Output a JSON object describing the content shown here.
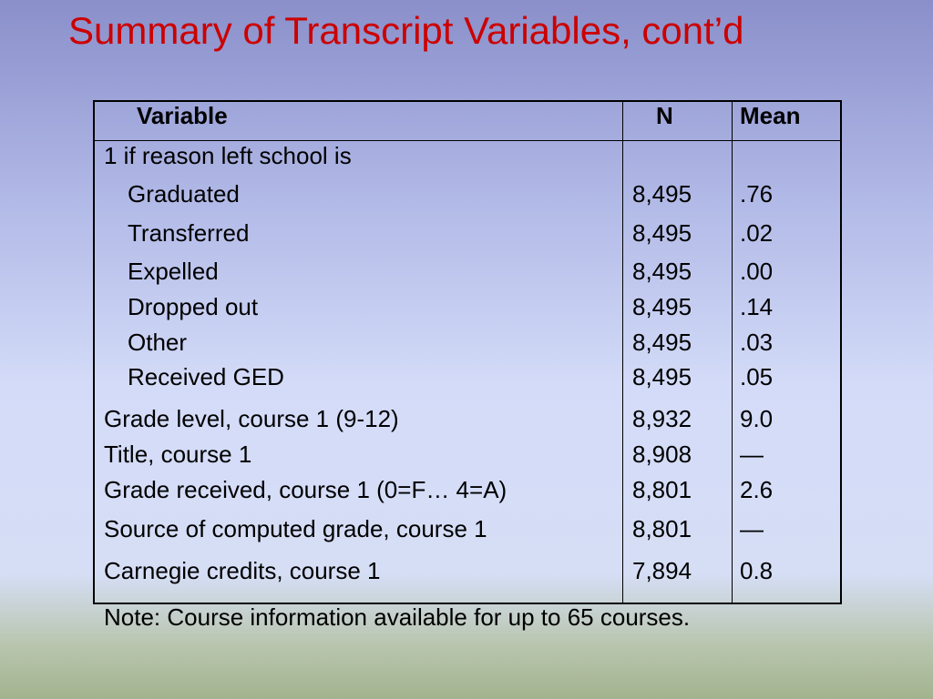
{
  "title": "Summary of Transcript Variables, cont’d",
  "table": {
    "header": [
      "Variable",
      "N",
      "Mean"
    ],
    "group_label": "1 if reason left school is",
    "group_rows": [
      [
        "Graduated",
        "8,495",
        ".76"
      ],
      [
        "Transferred",
        "8,495",
        ".02"
      ],
      [
        "Expelled",
        "8,495",
        ".00"
      ],
      [
        "Dropped out",
        "8,495",
        ".14"
      ],
      [
        "Other",
        "8,495",
        ".03"
      ],
      [
        "Received GED",
        "8,495",
        ".05"
      ]
    ],
    "rows": [
      [
        "Grade level, course 1 (9-12)",
        "8,932",
        "9.0"
      ],
      [
        "Title, course 1",
        "8,908",
        "—"
      ],
      [
        "Grade received, course 1 (0=F… 4=A)",
        "8,801",
        "2.6"
      ],
      [
        "Source of computed grade, course 1",
        "8,801",
        "—"
      ],
      [
        "Carnegie credits, course 1",
        "7,894",
        "0.8"
      ]
    ]
  },
  "note": "Note:  Course information available for up to 65 courses."
}
